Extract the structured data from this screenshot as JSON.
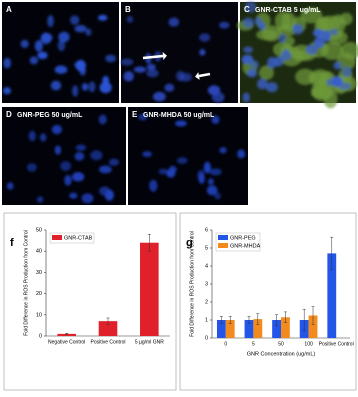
{
  "panels": [
    {
      "label": "A"
    },
    {
      "label": "B"
    },
    {
      "label": "C",
      "caption": "GNR-CTAB 5 ug/mL"
    },
    {
      "label": "D",
      "caption": "GNR-PEG 50 ug/mL"
    },
    {
      "label": "E",
      "caption": "GNR-MHDA 50 ug/mL"
    }
  ],
  "chart_data": [
    {
      "type": "bar",
      "panel_label": "f",
      "y_label": "Fold Difference in ROS Production from Control",
      "categories": [
        "Negative Control",
        "Positive Control",
        "5 µg/ml GNR"
      ],
      "series": [
        {
          "name": "GNR-CTAB",
          "color": "#e0202a",
          "values": [
            1,
            7,
            44
          ],
          "errors": [
            0.3,
            1.5,
            4
          ]
        }
      ],
      "ylim": [
        0,
        50
      ],
      "yticks": [
        0,
        10,
        20,
        30,
        40,
        50
      ],
      "legend": "top-left"
    },
    {
      "type": "bar",
      "panel_label": "g",
      "y_label": "Fold Difference in ROS Production from Control",
      "x_label": "GNR Concentration (ug/mL)",
      "categories": [
        "0",
        "5",
        "50",
        "100",
        "Positive Control"
      ],
      "series": [
        {
          "name": "GNR-PEG",
          "color": "#2255e8",
          "values": [
            1,
            1,
            1,
            1,
            4.7
          ],
          "errors": [
            0.2,
            0.2,
            0.3,
            0.6,
            0.9
          ]
        },
        {
          "name": "GNR-MHDA",
          "color": "#f28a1e",
          "values": [
            1,
            1.05,
            1.15,
            1.25,
            null
          ],
          "errors": [
            0.2,
            0.3,
            0.3,
            0.5,
            null
          ]
        }
      ],
      "ylim": [
        0,
        6
      ],
      "yticks": [
        0,
        1,
        2,
        3,
        4,
        5,
        6
      ],
      "legend": "top-left"
    }
  ]
}
